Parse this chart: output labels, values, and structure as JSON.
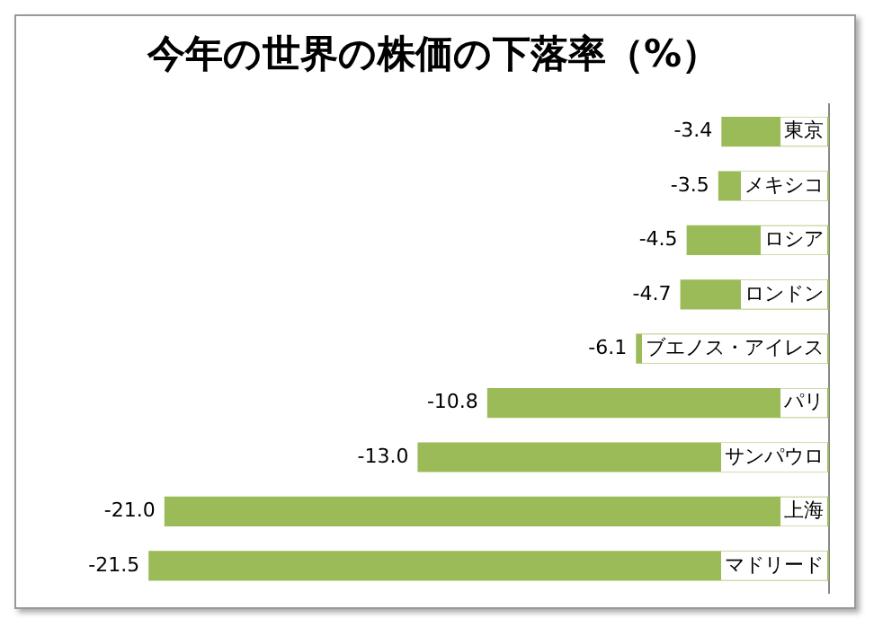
{
  "chart_data": {
    "type": "bar",
    "orientation": "horizontal",
    "title": "今年の世界の株価の下落率（%）",
    "categories": [
      "東京",
      "メキシコ",
      "ロシア",
      "ロンドン",
      "ブエノス・アイレス",
      "パリ",
      "サンパウロ",
      "上海",
      "マドリード"
    ],
    "values": [
      -3.4,
      -3.5,
      -4.5,
      -4.7,
      -6.1,
      -10.8,
      -13.0,
      -21.0,
      -21.5
    ],
    "value_labels": [
      "-3.4",
      "-3.5",
      "-4.5",
      "-4.7",
      "-6.1",
      "-10.8",
      "-13.0",
      "-21.0",
      "-21.5"
    ],
    "color": "#9bbb59",
    "legend": false
  }
}
